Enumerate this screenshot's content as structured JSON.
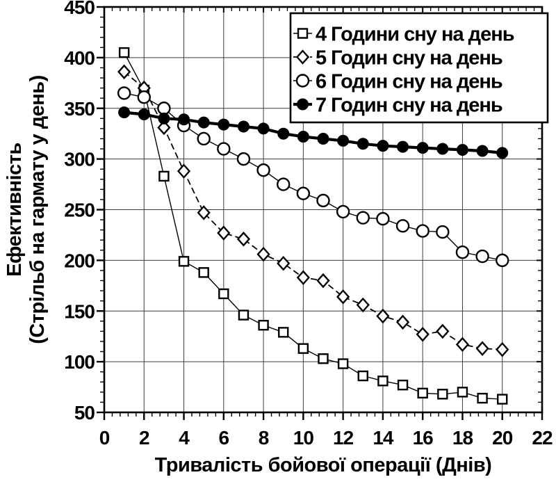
{
  "figure": {
    "background_color": "#ffffff",
    "ink_color": "#000000",
    "description": "Effectiveness vs duration of combat operation for different daily sleep hours"
  },
  "chart_data": {
    "type": "line",
    "title": "",
    "xlabel": "Тривалість бойової операції (Днів)",
    "ylabel_lines": [
      "Ефективність",
      "(Стрільб на гармату у день)"
    ],
    "xlim": [
      0,
      22
    ],
    "ylim": [
      50,
      450
    ],
    "x_major_step": 2,
    "y_major_step": 50,
    "x_minor_step": 0.4,
    "y_minor_step": 10,
    "grid": "major-both",
    "legend_position": "top-right",
    "x_tick_labels": [
      "0",
      "2",
      "4",
      "6",
      "8",
      "10",
      "12",
      "14",
      "16",
      "18",
      "20",
      "22"
    ],
    "y_tick_labels": [
      "50",
      "100",
      "150",
      "200",
      "250",
      "300",
      "350",
      "400",
      "450"
    ],
    "x": [
      1,
      2,
      3,
      4,
      5,
      6,
      7,
      8,
      9,
      10,
      11,
      12,
      13,
      14,
      15,
      16,
      17,
      18,
      19,
      20
    ],
    "series": [
      {
        "label": "4 Години сну на день",
        "marker": "square-open",
        "line_style": "solid-thin",
        "values": [
          405,
          368,
          283,
          199,
          188,
          167,
          146,
          136,
          129,
          113,
          103,
          98,
          86,
          81,
          77,
          69,
          68,
          70,
          64,
          63
        ]
      },
      {
        "label": "5 Годин сну на день",
        "marker": "diamond-open",
        "line_style": "dashed",
        "values": [
          386,
          370,
          331,
          288,
          247,
          227,
          221,
          206,
          197,
          183,
          180,
          164,
          156,
          145,
          139,
          127,
          130,
          117,
          113,
          112
        ]
      },
      {
        "label": "6 Годин сну на день",
        "marker": "circle-open",
        "line_style": "solid-thin",
        "values": [
          365,
          361,
          350,
          333,
          320,
          310,
          300,
          289,
          275,
          266,
          259,
          248,
          242,
          241,
          234,
          229,
          228,
          208,
          204,
          200
        ]
      },
      {
        "label": "7 Годин сну на день",
        "marker": "circle-filled",
        "line_style": "solid-thick",
        "values": [
          346,
          344,
          340,
          339,
          336,
          334,
          332,
          330,
          325,
          322,
          320,
          318,
          315,
          313,
          312,
          311,
          310,
          309,
          308,
          306
        ]
      }
    ]
  }
}
